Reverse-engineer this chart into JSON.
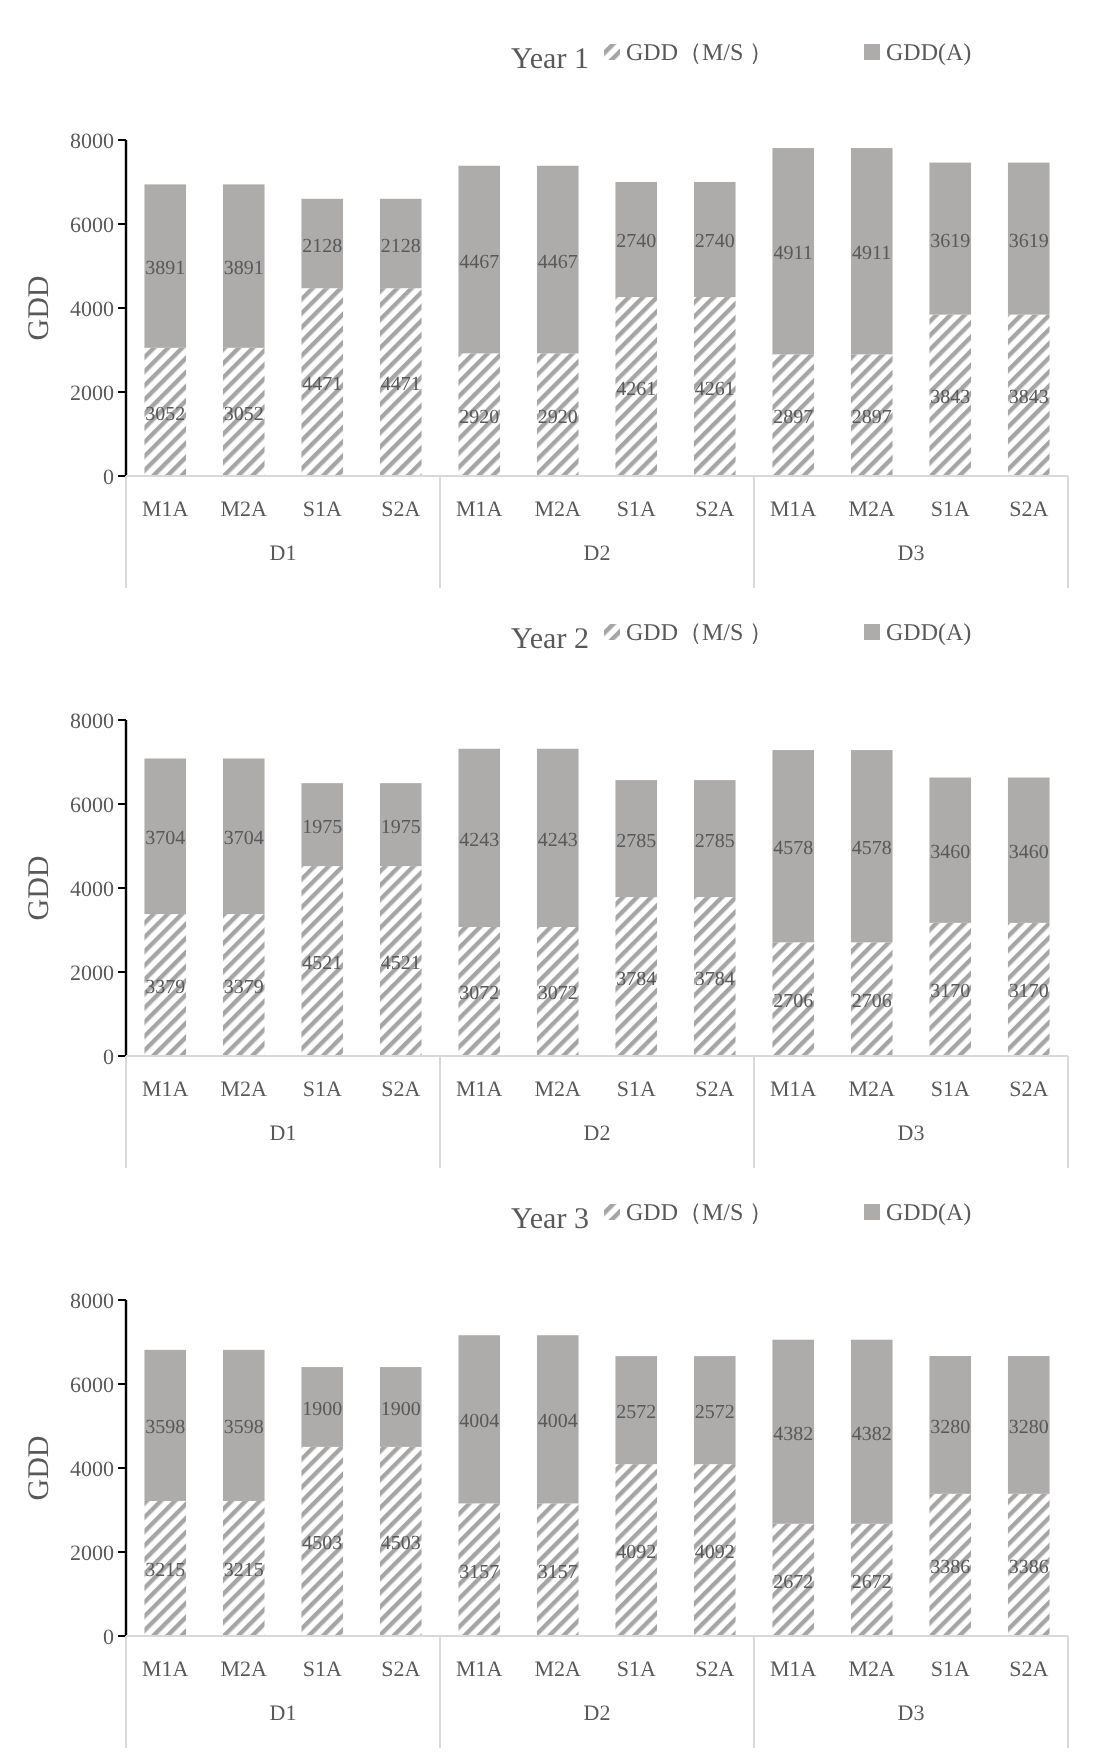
{
  "chart_data": [
    {
      "type": "bar",
      "title": "Year 1",
      "ylabel": "GDD",
      "categories": [
        "M1A",
        "M2A",
        "S1A",
        "S2A",
        "M1A",
        "M2A",
        "S1A",
        "S2A",
        "M1A",
        "M2A",
        "S1A",
        "S2A"
      ],
      "stacked": true,
      "data_labels": true,
      "legend": "top right",
      "grid": false,
      "ylim": [
        0,
        8000
      ],
      "yticks": [
        0,
        2000,
        4000,
        6000,
        8000
      ],
      "annotations": [
        "D1",
        "D2",
        "D3"
      ],
      "series": [
        {
          "name": "GDD（M/S ）",
          "color": "#a5a5a5",
          "values": [
            3052,
            3052,
            4471,
            4471,
            2920,
            2920,
            4261,
            4261,
            2897,
            2897,
            3843,
            3843
          ]
        },
        {
          "name": "GDD(A)",
          "color": "#aeabab",
          "values": [
            3891,
            3891,
            2128,
            2128,
            4467,
            4467,
            2740,
            2740,
            4911,
            4911,
            3619,
            3619
          ]
        }
      ]
    },
    {
      "type": "bar",
      "title": "Year 2",
      "ylabel": "GDD",
      "categories": [
        "M1A",
        "M2A",
        "S1A",
        "S2A",
        "M1A",
        "M2A",
        "S1A",
        "S2A",
        "M1A",
        "M2A",
        "S1A",
        "S2A"
      ],
      "stacked": true,
      "data_labels": true,
      "legend": "top right",
      "grid": false,
      "ylim": [
        0,
        8000
      ],
      "yticks": [
        0,
        2000,
        4000,
        6000,
        8000
      ],
      "annotations": [
        "D1",
        "D2",
        "D3"
      ],
      "series": [
        {
          "name": "GDD（M/S ）",
          "color": "#a5a5a5",
          "values": [
            3379,
            3379,
            4521,
            4521,
            3072,
            3072,
            3784,
            3784,
            2706,
            2706,
            3170,
            3170
          ]
        },
        {
          "name": "GDD(A)",
          "color": "#aeabab",
          "values": [
            3704,
            3704,
            1975,
            1975,
            4243,
            4243,
            2785,
            2785,
            4578,
            4578,
            3460,
            3460
          ]
        }
      ]
    },
    {
      "type": "bar",
      "title": "Year 3",
      "ylabel": "GDD",
      "categories": [
        "M1A",
        "M2A",
        "S1A",
        "S2A",
        "M1A",
        "M2A",
        "S1A",
        "S2A",
        "M1A",
        "M2A",
        "S1A",
        "S2A"
      ],
      "stacked": true,
      "data_labels": true,
      "legend": "top right",
      "grid": false,
      "ylim": [
        0,
        8000
      ],
      "yticks": [
        0,
        2000,
        4000,
        6000,
        8000
      ],
      "annotations": [
        "D1",
        "D2",
        "D3"
      ],
      "series": [
        {
          "name": "GDD（M/S ）",
          "color": "#a5a5a5",
          "values": [
            3215,
            3215,
            4503,
            4503,
            3157,
            3157,
            4092,
            4092,
            2672,
            2672,
            3386,
            3386
          ]
        },
        {
          "name": "GDD(A)",
          "color": "#aeabab",
          "values": [
            3598,
            3598,
            1900,
            1900,
            4004,
            4004,
            2572,
            2572,
            4382,
            4382,
            3280,
            3280
          ]
        }
      ]
    }
  ]
}
